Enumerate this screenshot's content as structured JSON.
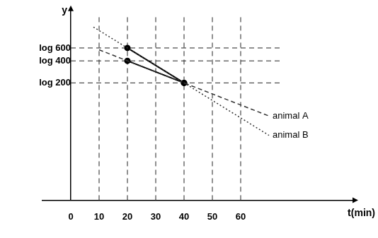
{
  "chart_data": {
    "type": "line",
    "x_label": "t(min)",
    "y_label": "y",
    "xlim": [
      -10,
      100
    ],
    "xticks": [
      0,
      10,
      20,
      30,
      40,
      50,
      60
    ],
    "ylim": [
      0.7,
      3.3
    ],
    "yticks": [
      {
        "value": 2.301,
        "label": "log 200"
      },
      {
        "value": 2.602,
        "label": "log 400"
      },
      {
        "value": 2.778,
        "label": "log 600"
      }
    ],
    "grid": true,
    "series": [
      {
        "name": "animal A",
        "color": "#333333",
        "line_style": "dashed",
        "marker": "none",
        "x": [
          10,
          70
        ],
        "values": [
          2.753,
          1.849
        ]
      },
      {
        "name": "animal B",
        "color": "#333333",
        "line_style": "dotted",
        "marker": "none",
        "x": [
          8,
          70
        ],
        "values": [
          3.064,
          1.585
        ]
      },
      {
        "color": "#000000",
        "line_style": "solid",
        "marker": "circle",
        "x": [
          20,
          40
        ],
        "values": [
          2.602,
          2.301
        ]
      },
      {
        "color": "#000000",
        "line_style": "solid",
        "marker": "circle",
        "x": [
          20,
          40
        ],
        "values": [
          2.778,
          2.301
        ]
      }
    ]
  }
}
